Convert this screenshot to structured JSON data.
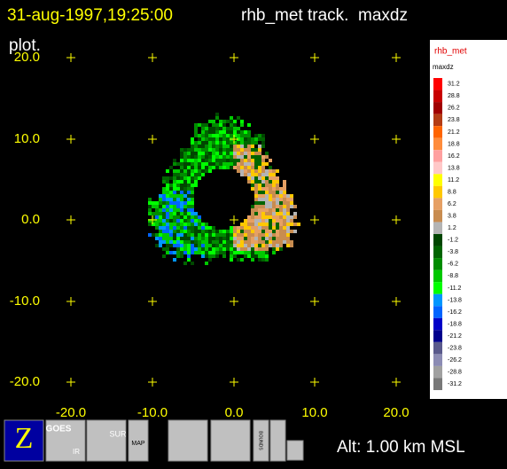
{
  "header": {
    "timestamp": "31-aug-1997,19:25:00",
    "title": "rhb_met track.  maxdz",
    "title_cont": "plot."
  },
  "plot": {
    "y_labels": [
      "20.0",
      "10.0",
      "0.0",
      "-10.0",
      "-20.0"
    ],
    "x_labels": [
      "-20.0",
      "-10.0",
      "0.0",
      "10.0",
      "20.0"
    ]
  },
  "color_bar": {
    "radar": "rhb_met",
    "field": "maxdz",
    "levels": [
      {
        "label": "31.2",
        "color": "#ff0000"
      },
      {
        "label": "28.8",
        "color": "#c80000"
      },
      {
        "label": "26.2",
        "color": "#a00000"
      },
      {
        "label": "23.8",
        "color": "#b43c14"
      },
      {
        "label": "21.2",
        "color": "#ff6400"
      },
      {
        "label": "18.8",
        "color": "#ff8c3c"
      },
      {
        "label": "16.2",
        "color": "#ffa0a0"
      },
      {
        "label": "13.8",
        "color": "#ffc8c8"
      },
      {
        "label": "11.2",
        "color": "#ffff00"
      },
      {
        "label": "8.8",
        "color": "#ffc800"
      },
      {
        "label": "6.2",
        "color": "#e6a064"
      },
      {
        "label": "3.8",
        "color": "#c88c50"
      },
      {
        "label": "1.2",
        "color": "#b4b4b4"
      },
      {
        "label": "-1.2",
        "color": "#004600"
      },
      {
        "label": "-3.8",
        "color": "#006400"
      },
      {
        "label": "-6.2",
        "color": "#008c00"
      },
      {
        "label": "-8.8",
        "color": "#00c800"
      },
      {
        "label": "-11.2",
        "color": "#00ff00"
      },
      {
        "label": "-13.8",
        "color": "#0096ff"
      },
      {
        "label": "-16.2",
        "color": "#0064ff"
      },
      {
        "label": "-18.8",
        "color": "#0000c8"
      },
      {
        "label": "-21.2",
        "color": "#00008c"
      },
      {
        "label": "-23.8",
        "color": "#5a5a8c"
      },
      {
        "label": "-26.2",
        "color": "#8c8cb4"
      },
      {
        "label": "-28.8",
        "color": "#a0a0a0"
      },
      {
        "label": "-31.2",
        "color": "#787878"
      }
    ]
  },
  "toolbar": {
    "buttons": [
      "Z",
      "GOES",
      "IR",
      "SUR",
      "MAP",
      "BOUNDS"
    ]
  },
  "status": {
    "altitude": "Alt: 1.00 km MSL"
  }
}
